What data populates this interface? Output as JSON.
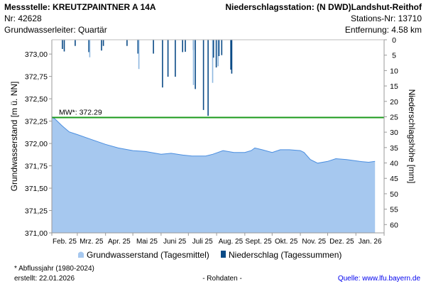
{
  "header": {
    "station_title": "Messstelle: KREUTZPAINTNER A 14A",
    "station_nr": "Nr: 42628",
    "aquifer": "Grundwasserleiter: Quartär",
    "precip_station": "Niederschlagsstation: (N DWD)Landshut-Reithof",
    "precip_station_nr": "Stations-Nr: 13710",
    "distance": "Entfernung: 4.58 km"
  },
  "chart_data": {
    "type": "area",
    "ylabel": "Grundwasserstand [m ü. NN]",
    "y2label": "Niederschlagshöhe [mm]",
    "ylim": [
      371.0,
      373.16
    ],
    "y2lim": [
      0,
      62.7
    ],
    "y2_inverted": true,
    "xlim": [
      "2025-02-01",
      "2026-02-01"
    ],
    "yticks": [
      "371,00",
      "371,25",
      "371,50",
      "371,75",
      "372,00",
      "372,25",
      "372,50",
      "372,75",
      "373,00"
    ],
    "ytick_values": [
      371.0,
      371.25,
      371.5,
      371.75,
      372.0,
      372.25,
      372.5,
      372.75,
      373.0
    ],
    "y2ticks": [
      "0",
      "5",
      "10",
      "15",
      "20",
      "25",
      "30",
      "35",
      "40",
      "45",
      "50",
      "55",
      "60"
    ],
    "xticks": [
      "Feb. 25",
      "Mrz. 25",
      "Apr. 25",
      "Mai 25",
      "Juni 25",
      "Juli 25",
      "Aug. 25",
      "Sept. 25",
      "Okt. 25",
      "Nov. 25",
      "Dez. 25",
      "Jan. 26"
    ],
    "mean_line": {
      "label": "MW*: 372.29",
      "value": 372.29,
      "color": "#1a9a1a"
    },
    "legend": {
      "position": "bottom",
      "groundwater": "Grundwasserstand (Tagesmittel)",
      "precip": "Niederschlag (Tagessummen)"
    },
    "colors": {
      "groundwater": "#a6c8ef",
      "precip": "#0a4a86",
      "precip_light": "#8fb8e0"
    },
    "groundwater": [
      [
        "2025-02-01",
        372.3
      ],
      [
        "2025-02-05",
        372.27
      ],
      [
        "2025-02-12",
        372.2
      ],
      [
        "2025-02-20",
        372.13
      ],
      [
        "2025-03-01",
        372.1
      ],
      [
        "2025-03-15",
        372.05
      ],
      [
        "2025-04-01",
        371.99
      ],
      [
        "2025-04-15",
        371.95
      ],
      [
        "2025-05-01",
        371.92
      ],
      [
        "2025-05-15",
        371.91
      ],
      [
        "2025-06-01",
        371.88
      ],
      [
        "2025-06-12",
        371.89
      ],
      [
        "2025-06-25",
        371.87
      ],
      [
        "2025-07-05",
        371.86
      ],
      [
        "2025-07-20",
        371.86
      ],
      [
        "2025-07-28",
        371.88
      ],
      [
        "2025-08-08",
        371.92
      ],
      [
        "2025-08-20",
        371.9
      ],
      [
        "2025-09-01",
        371.9
      ],
      [
        "2025-09-08",
        371.92
      ],
      [
        "2025-09-12",
        371.95
      ],
      [
        "2025-09-20",
        371.93
      ],
      [
        "2025-10-01",
        371.9
      ],
      [
        "2025-10-10",
        371.93
      ],
      [
        "2025-10-20",
        371.93
      ],
      [
        "2025-11-01",
        371.92
      ],
      [
        "2025-11-05",
        371.9
      ],
      [
        "2025-11-12",
        371.82
      ],
      [
        "2025-11-20",
        371.78
      ],
      [
        "2025-12-01",
        371.8
      ],
      [
        "2025-12-10",
        371.83
      ],
      [
        "2025-12-22",
        371.82
      ],
      [
        "2026-01-05",
        371.8
      ],
      [
        "2026-01-15",
        371.79
      ],
      [
        "2026-01-22",
        371.8
      ]
    ],
    "precipitation": [
      [
        "2025-02-12",
        3.0
      ],
      [
        "2025-02-14",
        3.8
      ],
      [
        "2025-02-26",
        2.0
      ],
      [
        "2025-03-13",
        4.0
      ],
      [
        "2025-03-14",
        5.7,
        "light"
      ],
      [
        "2025-03-27",
        3.5
      ],
      [
        "2025-03-29",
        2.0
      ],
      [
        "2025-04-24",
        2.0
      ],
      [
        "2025-05-06",
        4.5
      ],
      [
        "2025-05-07",
        9.5,
        "light"
      ],
      [
        "2025-05-23",
        4.5
      ],
      [
        "2025-06-02",
        15.5
      ],
      [
        "2025-06-08",
        12.0
      ],
      [
        "2025-06-16",
        12.0
      ],
      [
        "2025-06-24",
        4.0
      ],
      [
        "2025-06-27",
        3.9
      ],
      [
        "2025-07-06",
        3.3
      ],
      [
        "2025-07-06",
        14.7,
        "light"
      ],
      [
        "2025-07-08",
        16.0
      ],
      [
        "2025-07-17",
        22.8
      ],
      [
        "2025-07-22",
        24.7
      ],
      [
        "2025-07-27",
        14.0,
        "light"
      ],
      [
        "2025-07-28",
        5.8
      ],
      [
        "2025-07-31",
        9.0
      ],
      [
        "2025-08-02",
        8.6,
        "light"
      ],
      [
        "2025-08-03",
        5.3
      ],
      [
        "2025-08-06",
        5.0
      ],
      [
        "2025-08-16",
        9.7
      ],
      [
        "2025-08-17",
        11.0
      ]
    ]
  },
  "footer": {
    "note": "* Abflussjahr (1980-2024)",
    "created": "erstellt:  22.01.2026",
    "raw": "- Rohdaten -",
    "source": "Quelle: www.lfu.bayern.de"
  }
}
